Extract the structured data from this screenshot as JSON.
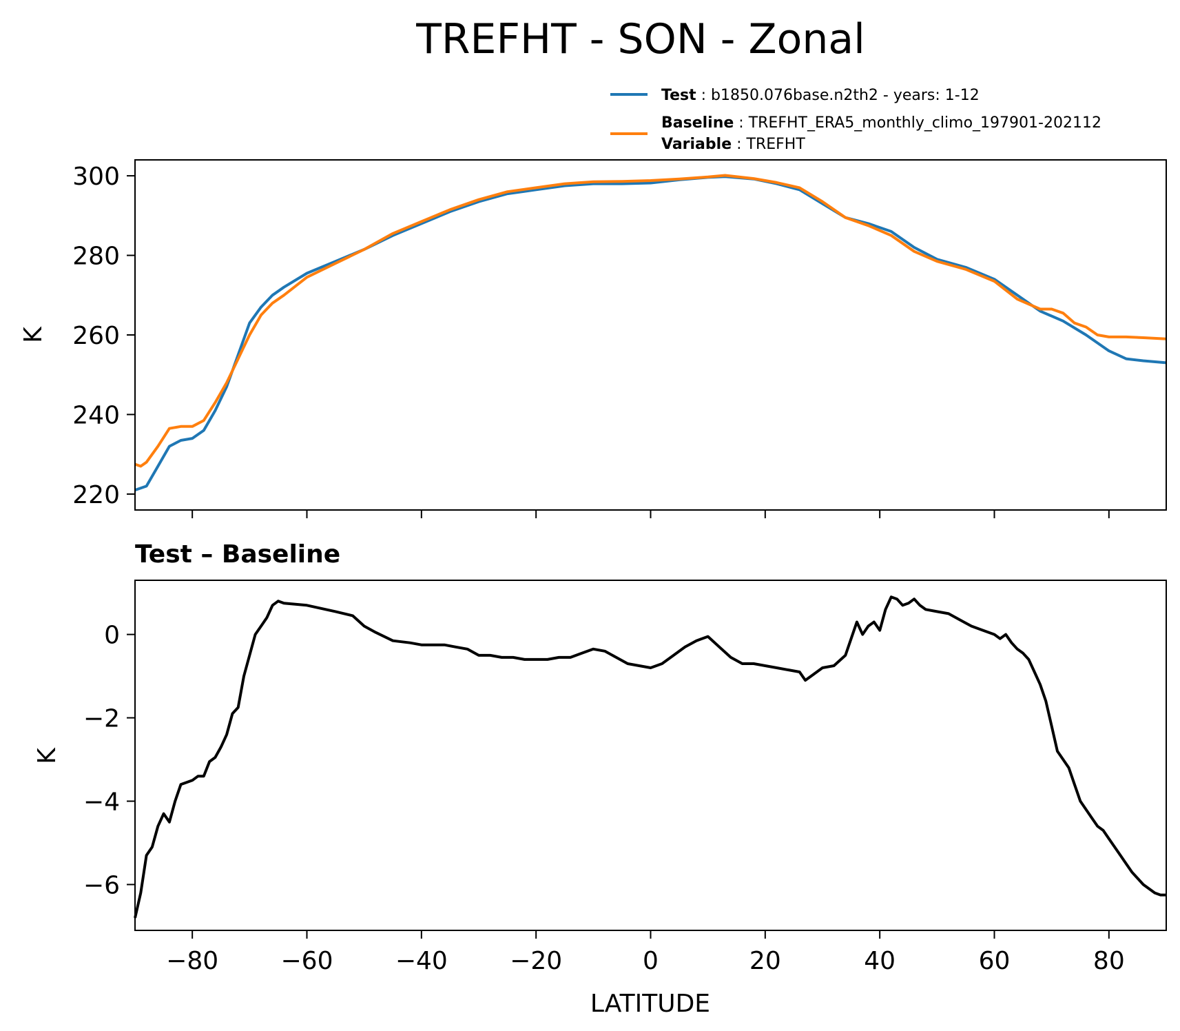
{
  "colors": {
    "test": "#1f77b4",
    "baseline": "#ff7f0e",
    "diff": "#000000"
  },
  "chart_data": [
    {
      "type": "line",
      "title": "TREFHT - SON - Zonal",
      "ylabel": "K",
      "xlim": [
        -90,
        90
      ],
      "ylim": [
        216,
        304
      ],
      "xticks": [
        -80,
        -60,
        -40,
        -20,
        0,
        20,
        40,
        60,
        80
      ],
      "yticks": [
        220,
        240,
        260,
        280,
        300
      ],
      "legend": [
        {
          "key": "Test",
          "text": "b1850.076base.n2th2 - years: 1-12"
        },
        {
          "key": "Baseline",
          "text": "TREFHT_ERA5_monthly_climo_197901-202112"
        },
        {
          "key": "Variable",
          "text": "TREFHT"
        }
      ],
      "series": [
        {
          "name": "Test",
          "x": [
            -90,
            -88,
            -86,
            -84,
            -82,
            -80,
            -78,
            -76,
            -74,
            -72,
            -70,
            -68,
            -66,
            -64,
            -60,
            -55,
            -50,
            -45,
            -40,
            -35,
            -30,
            -25,
            -20,
            -15,
            -10,
            -5,
            0,
            5,
            10,
            13,
            18,
            22,
            26,
            30,
            34,
            38,
            42,
            46,
            50,
            55,
            60,
            64,
            68,
            72,
            76,
            80,
            83,
            86,
            90
          ],
          "y": [
            221,
            222,
            227,
            232,
            233.5,
            234,
            236,
            241,
            247,
            255,
            263,
            267,
            270,
            272,
            275.5,
            278.5,
            281.5,
            285,
            288,
            291,
            293.5,
            295.5,
            296.5,
            297.5,
            298,
            298,
            298.2,
            299,
            299.6,
            299.8,
            299.2,
            298,
            296.5,
            293,
            289.5,
            288,
            286,
            282,
            279,
            277,
            274,
            270,
            266,
            263.5,
            260,
            256,
            254,
            253.5,
            253
          ]
        },
        {
          "name": "Baseline",
          "x": [
            -90,
            -89,
            -88,
            -86,
            -84,
            -82,
            -80,
            -78,
            -76,
            -74,
            -72,
            -70,
            -68,
            -66,
            -64,
            -60,
            -55,
            -50,
            -45,
            -40,
            -35,
            -30,
            -25,
            -20,
            -15,
            -10,
            -5,
            0,
            5,
            10,
            13,
            18,
            22,
            26,
            30,
            34,
            38,
            42,
            46,
            50,
            55,
            60,
            64,
            68,
            70,
            72,
            74,
            76,
            78,
            80,
            83,
            86,
            90
          ],
          "y": [
            227.5,
            227,
            228,
            232,
            236.5,
            237,
            237,
            238.5,
            243,
            248,
            254,
            260,
            265,
            268,
            270,
            274.5,
            278,
            281.5,
            285.5,
            288.5,
            291.5,
            294,
            296,
            297,
            298,
            298.5,
            298.6,
            298.8,
            299.2,
            299.7,
            300.1,
            299.3,
            298.3,
            297,
            293.5,
            289.5,
            287.5,
            285,
            281,
            278.5,
            276.5,
            273.5,
            269,
            266.5,
            266.5,
            265.5,
            263,
            262,
            260,
            259.5,
            259.5,
            259.3,
            259
          ]
        }
      ]
    },
    {
      "type": "line",
      "title": "Test – Baseline",
      "xlabel": "LATITUDE",
      "ylabel": "K",
      "xlim": [
        -90,
        90
      ],
      "ylim": [
        -7.1,
        1.3
      ],
      "xticks": [
        -80,
        -60,
        -40,
        -20,
        0,
        20,
        40,
        60,
        80
      ],
      "xtick_labels": [
        "−80",
        "−60",
        "−40",
        "−20",
        "0",
        "20",
        "40",
        "60",
        "80"
      ],
      "yticks": [
        0,
        -2,
        -4,
        -6
      ],
      "ytick_labels": [
        "0",
        "−2",
        "−4",
        "−6"
      ],
      "series": [
        {
          "name": "",
          "x": [
            -90,
            -89,
            -88,
            -87,
            -86,
            -85,
            -84,
            -83,
            -82,
            -81,
            -80,
            -79,
            -78,
            -77,
            -76,
            -75,
            -74,
            -73,
            -72,
            -71,
            -70,
            -69,
            -68,
            -67,
            -66,
            -65,
            -64,
            -60,
            -55,
            -52,
            -50,
            -48,
            -45,
            -42,
            -40,
            -38,
            -36,
            -34,
            -32,
            -30,
            -28,
            -26,
            -24,
            -22,
            -20,
            -18,
            -16,
            -14,
            -12,
            -10,
            -8,
            -6,
            -4,
            -2,
            0,
            2,
            4,
            6,
            8,
            10,
            12,
            14,
            16,
            18,
            20,
            22,
            24,
            26,
            27,
            28,
            30,
            32,
            34,
            35,
            36,
            37,
            38,
            39,
            40,
            41,
            42,
            43,
            44,
            45,
            46,
            47,
            48,
            50,
            52,
            54,
            56,
            58,
            60,
            61,
            62,
            63,
            64,
            65,
            66,
            67,
            68,
            69,
            70,
            71,
            72,
            73,
            74,
            75,
            76,
            77,
            78,
            79,
            80,
            81,
            82,
            83,
            84,
            85,
            86,
            87,
            88,
            89,
            90
          ],
          "y": [
            -6.8,
            -6.2,
            -5.3,
            -5.1,
            -4.6,
            -4.3,
            -4.5,
            -4.0,
            -3.6,
            -3.55,
            -3.5,
            -3.4,
            -3.4,
            -3.05,
            -2.95,
            -2.7,
            -2.4,
            -1.9,
            -1.75,
            -1.0,
            -0.5,
            0.0,
            0.2,
            0.4,
            0.7,
            0.8,
            0.75,
            0.7,
            0.55,
            0.45,
            0.2,
            0.05,
            -0.15,
            -0.2,
            -0.25,
            -0.25,
            -0.25,
            -0.3,
            -0.35,
            -0.5,
            -0.5,
            -0.55,
            -0.55,
            -0.6,
            -0.6,
            -0.6,
            -0.55,
            -0.55,
            -0.45,
            -0.35,
            -0.4,
            -0.55,
            -0.7,
            -0.75,
            -0.8,
            -0.7,
            -0.5,
            -0.3,
            -0.15,
            -0.05,
            -0.3,
            -0.55,
            -0.7,
            -0.7,
            -0.75,
            -0.8,
            -0.85,
            -0.9,
            -1.1,
            -1.0,
            -0.8,
            -0.75,
            -0.5,
            -0.1,
            0.3,
            0.0,
            0.2,
            0.3,
            0.1,
            0.6,
            0.9,
            0.85,
            0.7,
            0.75,
            0.85,
            0.7,
            0.6,
            0.55,
            0.5,
            0.35,
            0.2,
            0.1,
            0.0,
            -0.1,
            0.0,
            -0.2,
            -0.35,
            -0.45,
            -0.6,
            -0.9,
            -1.2,
            -1.6,
            -2.2,
            -2.8,
            -3.0,
            -3.2,
            -3.6,
            -4.0,
            -4.2,
            -4.4,
            -4.6,
            -4.7,
            -4.9,
            -5.1,
            -5.3,
            -5.5,
            -5.7,
            -5.85,
            -6.0,
            -6.1,
            -6.2,
            -6.25,
            -6.25
          ]
        }
      ]
    }
  ]
}
